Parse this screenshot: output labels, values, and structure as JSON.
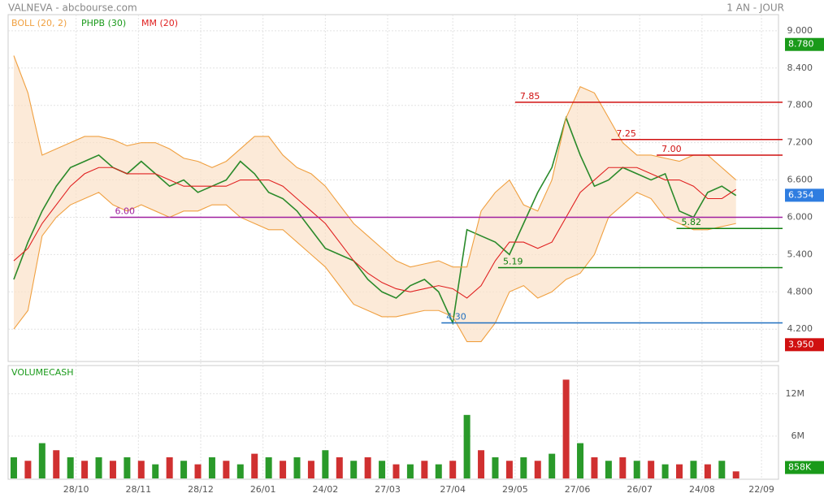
{
  "header": {
    "title": "VALNEVA - abcbourse.com",
    "period": "1 AN - JOUR"
  },
  "chart_data": [
    {
      "type": "price",
      "legend": [
        {
          "name": "BOLL (20, 2)",
          "color": "#f0a040"
        },
        {
          "name": "PHPB (30)",
          "color": "#1a9a1a"
        },
        {
          "name": "MM (20)",
          "color": "#e02020"
        }
      ],
      "x": [
        0,
        5,
        10,
        15,
        20,
        25,
        30,
        35,
        40,
        45,
        50,
        55,
        60,
        65,
        70,
        75,
        80,
        85,
        90,
        95,
        100,
        105,
        110,
        115,
        120,
        125,
        130,
        135,
        140,
        145,
        150,
        155,
        160,
        165,
        170,
        175,
        180,
        185,
        190,
        195,
        200,
        205,
        210,
        215,
        220,
        225,
        230,
        235,
        240,
        245,
        250,
        255
      ],
      "xlim": [
        -2,
        270
      ],
      "xticks": [
        {
          "value": 22,
          "label": "28/10"
        },
        {
          "value": 44,
          "label": "28/11"
        },
        {
          "value": 66,
          "label": "28/12"
        },
        {
          "value": 88,
          "label": "26/01"
        },
        {
          "value": 110,
          "label": "24/02"
        },
        {
          "value": 132,
          "label": "27/03"
        },
        {
          "value": 155,
          "label": "27/04"
        },
        {
          "value": 177,
          "label": "29/05"
        },
        {
          "value": 199,
          "label": "27/06"
        },
        {
          "value": 221,
          "label": "26/07"
        },
        {
          "value": 243,
          "label": "24/08"
        },
        {
          "value": 264,
          "label": "22/09"
        }
      ],
      "ylim": [
        3.68,
        9.26
      ],
      "yticks": [
        {
          "value": 4.2,
          "label": "4.200"
        },
        {
          "value": 4.8,
          "label": "4.800"
        },
        {
          "value": 5.4,
          "label": "5.400"
        },
        {
          "value": 6.0,
          "label": "6.000"
        },
        {
          "value": 6.6,
          "label": "6.600"
        },
        {
          "value": 7.2,
          "label": "7.200"
        },
        {
          "value": 7.8,
          "label": "7.800"
        },
        {
          "value": 8.4,
          "label": "8.400"
        },
        {
          "value": 9.0,
          "label": "9.000"
        }
      ],
      "series": [
        {
          "name": "close",
          "color": "#2a8a2a",
          "values": [
            5.0,
            5.6,
            6.1,
            6.5,
            6.8,
            6.9,
            7.0,
            6.8,
            6.7,
            6.9,
            6.7,
            6.5,
            6.6,
            6.4,
            6.5,
            6.6,
            6.9,
            6.7,
            6.4,
            6.3,
            6.1,
            5.8,
            5.5,
            5.4,
            5.3,
            5.0,
            4.8,
            4.7,
            4.9,
            5.0,
            4.8,
            4.3,
            5.8,
            5.7,
            5.6,
            5.4,
            5.9,
            6.4,
            6.8,
            7.6,
            7.0,
            6.5,
            6.6,
            6.8,
            6.7,
            6.6,
            6.7,
            6.1,
            6.0,
            6.4,
            6.5,
            6.35
          ]
        },
        {
          "name": "upper",
          "color": "#f0a040",
          "values": [
            8.6,
            8.0,
            7.0,
            7.1,
            7.2,
            7.3,
            7.3,
            7.25,
            7.15,
            7.2,
            7.2,
            7.1,
            6.95,
            6.9,
            6.8,
            6.9,
            7.1,
            7.3,
            7.3,
            7.0,
            6.8,
            6.7,
            6.5,
            6.2,
            5.9,
            5.7,
            5.5,
            5.3,
            5.2,
            5.25,
            5.3,
            5.2,
            5.2,
            6.1,
            6.4,
            6.6,
            6.2,
            6.1,
            6.6,
            7.6,
            8.1,
            8.0,
            7.6,
            7.2,
            7.0,
            7.0,
            6.95,
            6.9,
            7.0,
            7.0,
            6.8,
            6.6
          ]
        },
        {
          "name": "lower",
          "color": "#f0a040",
          "values": [
            4.2,
            4.5,
            5.7,
            6.0,
            6.2,
            6.3,
            6.4,
            6.2,
            6.1,
            6.2,
            6.1,
            6.0,
            6.1,
            6.1,
            6.2,
            6.2,
            6.0,
            5.9,
            5.8,
            5.8,
            5.6,
            5.4,
            5.2,
            4.9,
            4.6,
            4.5,
            4.4,
            4.4,
            4.45,
            4.5,
            4.5,
            4.4,
            4.0,
            4.0,
            4.3,
            4.8,
            4.9,
            4.7,
            4.8,
            5.0,
            5.1,
            5.4,
            6.0,
            6.2,
            6.4,
            6.3,
            6.0,
            5.9,
            5.8,
            5.8,
            5.85,
            5.9
          ]
        },
        {
          "name": "mm",
          "color": "#e02020",
          "values": [
            5.3,
            5.5,
            5.9,
            6.2,
            6.5,
            6.7,
            6.8,
            6.8,
            6.7,
            6.7,
            6.7,
            6.6,
            6.5,
            6.5,
            6.5,
            6.5,
            6.6,
            6.6,
            6.6,
            6.5,
            6.3,
            6.1,
            5.9,
            5.6,
            5.3,
            5.1,
            4.95,
            4.85,
            4.8,
            4.85,
            4.9,
            4.85,
            4.7,
            4.9,
            5.3,
            5.6,
            5.6,
            5.5,
            5.6,
            6.0,
            6.4,
            6.6,
            6.8,
            6.8,
            6.8,
            6.7,
            6.6,
            6.6,
            6.5,
            6.3,
            6.3,
            6.45
          ]
        }
      ],
      "levels": [
        {
          "value": 7.85,
          "label": "7.85",
          "start": 177,
          "color": "#d01010"
        },
        {
          "value": 7.25,
          "label": "7.25",
          "start": 211,
          "color": "#d01010"
        },
        {
          "value": 7.0,
          "label": "7.00",
          "start": 227,
          "color": "#d01010"
        },
        {
          "value": 6.0,
          "label": "6.00",
          "start": 34,
          "color": "#a020a0"
        },
        {
          "value": 5.19,
          "label": "5.19",
          "start": 171,
          "color": "#108010"
        },
        {
          "value": 5.82,
          "label": "5.82",
          "start": 234,
          "color": "#108010"
        },
        {
          "value": 4.3,
          "label": "4.30",
          "start": 151,
          "color": "#1f6fc0"
        }
      ],
      "price_tags": [
        {
          "value": 8.78,
          "label": "8.780",
          "color": "#1a9a1a"
        },
        {
          "value": 6.354,
          "label": "6.354",
          "color": "#2f7de0"
        },
        {
          "value": 3.95,
          "label": "3.950",
          "color": "#d01010"
        }
      ]
    },
    {
      "type": "volume",
      "title": "VOLUMECASH",
      "color": "#d03030",
      "ylim": [
        0,
        16000000
      ],
      "yticks": [
        {
          "value": 6000000,
          "label": "6M"
        },
        {
          "value": 12000000,
          "label": "12M"
        }
      ],
      "values": [
        3000000,
        2500000,
        5000000,
        4000000,
        3000000,
        2500000,
        3000000,
        2500000,
        3000000,
        2500000,
        2000000,
        3000000,
        2500000,
        2000000,
        3000000,
        2500000,
        2000000,
        3500000,
        3000000,
        2500000,
        3000000,
        2500000,
        4000000,
        3000000,
        2500000,
        3000000,
        2500000,
        2000000,
        2000000,
        2500000,
        2000000,
        2500000,
        9000000,
        4000000,
        3000000,
        2500000,
        3000000,
        2500000,
        3500000,
        14000000,
        5000000,
        3000000,
        2500000,
        3000000,
        2500000,
        2500000,
        2000000,
        2000000,
        2500000,
        2000000,
        2500000,
        1000000
      ],
      "tag": {
        "value": 858000,
        "label": "858K",
        "color": "#1a9a1a"
      }
    }
  ]
}
